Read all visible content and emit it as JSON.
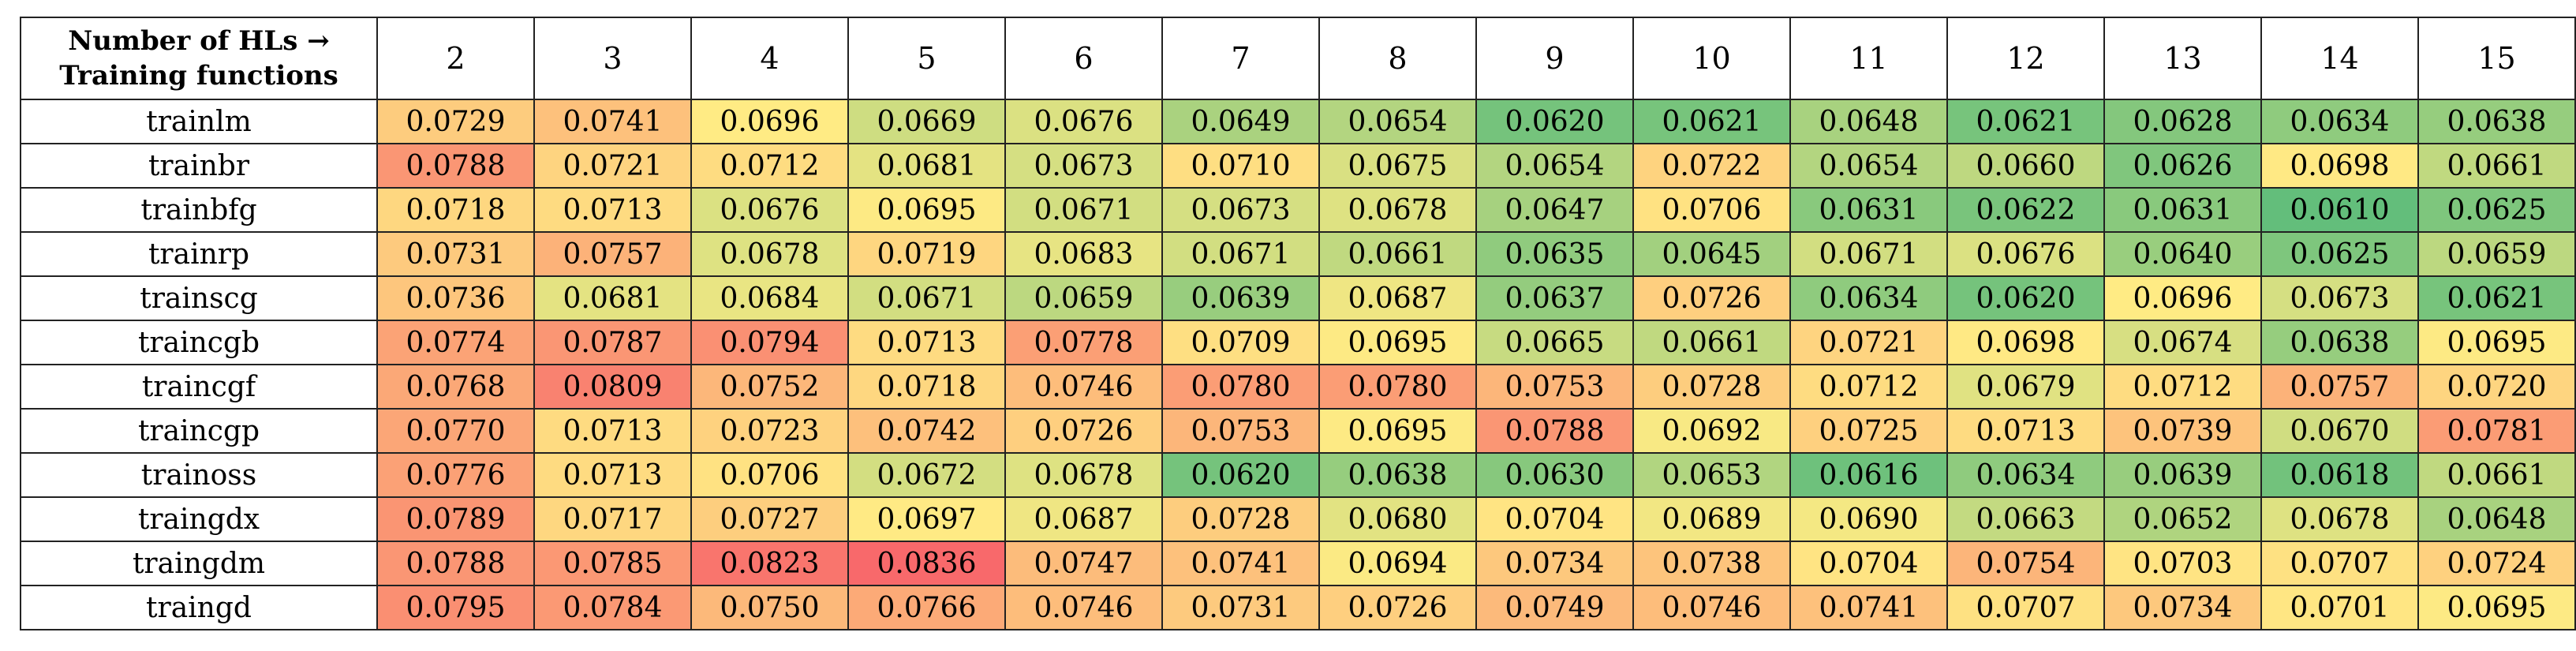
{
  "table": {
    "corner": [
      "Number of HLs →",
      "Training functions"
    ],
    "columns": [
      "2",
      "3",
      "4",
      "5",
      "6",
      "7",
      "8",
      "9",
      "10",
      "11",
      "12",
      "13",
      "14",
      "15"
    ],
    "rows": [
      {
        "label": "trainlm",
        "cells": [
          "0.0729",
          "0.0741",
          "0.0696",
          "0.0669",
          "0.0676",
          "0.0649",
          "0.0654",
          "0.0620",
          "0.0621",
          "0.0648",
          "0.0621",
          "0.0628",
          "0.0634",
          "0.0638"
        ]
      },
      {
        "label": "trainbr",
        "cells": [
          "0.0788",
          "0.0721",
          "0.0712",
          "0.0681",
          "0.0673",
          "0.0710",
          "0.0675",
          "0.0654",
          "0.0722",
          "0.0654",
          "0.0660",
          "0.0626",
          "0.0698",
          "0.0661"
        ]
      },
      {
        "label": "trainbfg",
        "cells": [
          "0.0718",
          "0.0713",
          "0.0676",
          "0.0695",
          "0.0671",
          "0.0673",
          "0.0678",
          "0.0647",
          "0.0706",
          "0.0631",
          "0.0622",
          "0.0631",
          "0.0610",
          "0.0625"
        ]
      },
      {
        "label": "trainrp",
        "cells": [
          "0.0731",
          "0.0757",
          "0.0678",
          "0.0719",
          "0.0683",
          "0.0671",
          "0.0661",
          "0.0635",
          "0.0645",
          "0.0671",
          "0.0676",
          "0.0640",
          "0.0625",
          "0.0659"
        ]
      },
      {
        "label": "trainscg",
        "cells": [
          "0.0736",
          "0.0681",
          "0.0684",
          "0.0671",
          "0.0659",
          "0.0639",
          "0.0687",
          "0.0637",
          "0.0726",
          "0.0634",
          "0.0620",
          "0.0696",
          "0.0673",
          "0.0621"
        ]
      },
      {
        "label": "traincgb",
        "cells": [
          "0.0774",
          "0.0787",
          "0.0794",
          "0.0713",
          "0.0778",
          "0.0709",
          "0.0695",
          "0.0665",
          "0.0661",
          "0.0721",
          "0.0698",
          "0.0674",
          "0.0638",
          "0.0695"
        ]
      },
      {
        "label": "traincgf",
        "cells": [
          "0.0768",
          "0.0809",
          "0.0752",
          "0.0718",
          "0.0746",
          "0.0780",
          "0.0780",
          "0.0753",
          "0.0728",
          "0.0712",
          "0.0679",
          "0.0712",
          "0.0757",
          "0.0720"
        ]
      },
      {
        "label": "traincgp",
        "cells": [
          "0.0770",
          "0.0713",
          "0.0723",
          "0.0742",
          "0.0726",
          "0.0753",
          "0.0695",
          "0.0788",
          "0.0692",
          "0.0725",
          "0.0713",
          "0.0739",
          "0.0670",
          "0.0781"
        ]
      },
      {
        "label": "trainoss",
        "cells": [
          "0.0776",
          "0.0713",
          "0.0706",
          "0.0672",
          "0.0678",
          "0.0620",
          "0.0638",
          "0.0630",
          "0.0653",
          "0.0616",
          "0.0634",
          "0.0639",
          "0.0618",
          "0.0661"
        ]
      },
      {
        "label": "traingdx",
        "cells": [
          "0.0789",
          "0.0717",
          "0.0727",
          "0.0697",
          "0.0687",
          "0.0728",
          "0.0680",
          "0.0704",
          "0.0689",
          "0.0690",
          "0.0663",
          "0.0652",
          "0.0678",
          "0.0648"
        ]
      },
      {
        "label": "traingdm",
        "cells": [
          "0.0788",
          "0.0785",
          "0.0823",
          "0.0836",
          "0.0747",
          "0.0741",
          "0.0694",
          "0.0734",
          "0.0738",
          "0.0704",
          "0.0754",
          "0.0703",
          "0.0707",
          "0.0724"
        ]
      },
      {
        "label": "traingd",
        "cells": [
          "0.0795",
          "0.0784",
          "0.0750",
          "0.0766",
          "0.0746",
          "0.0731",
          "0.0726",
          "0.0749",
          "0.0746",
          "0.0741",
          "0.0707",
          "0.0734",
          "0.0701",
          "0.0695"
        ]
      }
    ]
  }
}
